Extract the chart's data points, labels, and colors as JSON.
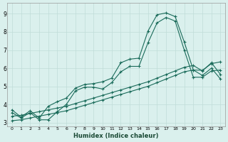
{
  "xlabel": "Humidex (Indice chaleur)",
  "bg_color": "#daf0ed",
  "grid_color": "#c0dcd8",
  "line_color": "#1a6b5a",
  "xlim": [
    -0.5,
    23.5
  ],
  "ylim": [
    2.8,
    9.6
  ],
  "xticks": [
    0,
    1,
    2,
    3,
    4,
    5,
    6,
    7,
    8,
    9,
    10,
    11,
    12,
    13,
    14,
    15,
    16,
    17,
    18,
    19,
    20,
    21,
    22,
    23
  ],
  "yticks": [
    3,
    4,
    5,
    6,
    7,
    8,
    9
  ],
  "line1_x": [
    0,
    1,
    2,
    3,
    4,
    5,
    6,
    7,
    8,
    9,
    10,
    11,
    12,
    13,
    14,
    15,
    16,
    17,
    18,
    19,
    20,
    21,
    22,
    23
  ],
  "line1_y": [
    3.7,
    3.3,
    3.65,
    3.25,
    3.9,
    4.15,
    4.35,
    4.9,
    5.1,
    5.15,
    5.25,
    5.45,
    6.3,
    6.5,
    6.55,
    8.05,
    8.95,
    9.05,
    8.85,
    7.45,
    5.9,
    5.88,
    6.25,
    6.35
  ],
  "line2_x": [
    0,
    1,
    2,
    3,
    4,
    5,
    6,
    7,
    8,
    9,
    10,
    11,
    12,
    13,
    14,
    15,
    16,
    17,
    18,
    19,
    20,
    21,
    22,
    23
  ],
  "line2_y": [
    3.55,
    3.25,
    3.55,
    3.15,
    3.15,
    3.6,
    4.0,
    4.75,
    4.95,
    4.95,
    4.85,
    5.2,
    5.8,
    6.1,
    6.1,
    7.4,
    8.5,
    8.8,
    8.6,
    7.0,
    5.5,
    5.5,
    5.85,
    5.9
  ],
  "line3_x": [
    0,
    1,
    2,
    3,
    4,
    5,
    6,
    7,
    8,
    9,
    10,
    11,
    12,
    13,
    14,
    15,
    16,
    17,
    18,
    19,
    20,
    21,
    22,
    23
  ],
  "line3_y": [
    3.35,
    3.4,
    3.5,
    3.6,
    3.7,
    3.8,
    3.9,
    4.05,
    4.2,
    4.35,
    4.5,
    4.65,
    4.8,
    4.95,
    5.1,
    5.25,
    5.45,
    5.65,
    5.85,
    6.05,
    6.15,
    5.85,
    6.3,
    5.65
  ],
  "line4_x": [
    0,
    1,
    2,
    3,
    4,
    5,
    6,
    7,
    8,
    9,
    10,
    11,
    12,
    13,
    14,
    15,
    16,
    17,
    18,
    19,
    20,
    21,
    22,
    23
  ],
  "line4_y": [
    3.1,
    3.15,
    3.25,
    3.35,
    3.45,
    3.55,
    3.65,
    3.8,
    3.95,
    4.1,
    4.25,
    4.4,
    4.55,
    4.7,
    4.85,
    5.0,
    5.2,
    5.4,
    5.6,
    5.8,
    5.9,
    5.6,
    6.0,
    5.4
  ]
}
